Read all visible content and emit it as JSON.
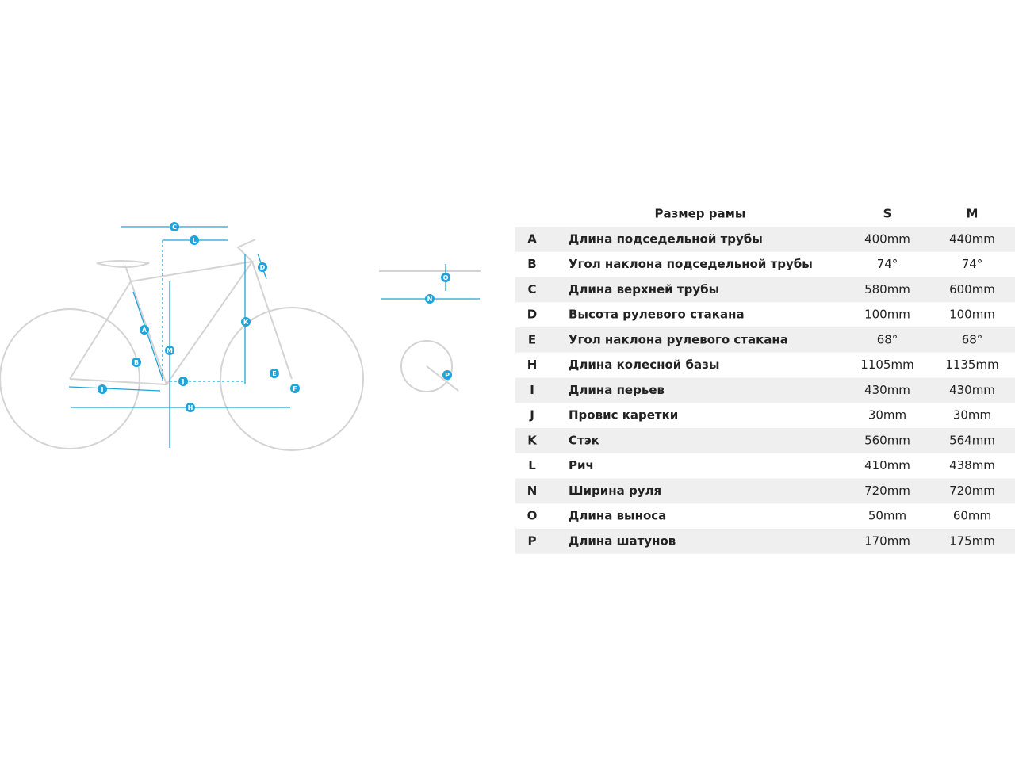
{
  "diagram": {
    "bike_labels": [
      "C",
      "L",
      "D",
      "A",
      "K",
      "M",
      "B",
      "J",
      "E",
      "F",
      "I",
      "H"
    ],
    "handlebar_labels": [
      "O",
      "N"
    ],
    "crank_labels": [
      "P"
    ]
  },
  "table": {
    "header": [
      "Размер рамы",
      "S",
      "M"
    ],
    "rows": [
      [
        "A",
        "Длина подседельной трубы",
        "400mm",
        "440mm"
      ],
      [
        "B",
        "Угол наклона подседельной трубы",
        "74°",
        "74°"
      ],
      [
        "C",
        "Длина верхней трубы",
        "580mm",
        "600mm"
      ],
      [
        "D",
        "Высота рулевого стакана",
        "100mm",
        "100mm"
      ],
      [
        "E",
        "Угол наклона рулевого стакана",
        "68°",
        "68°"
      ],
      [
        "H",
        "Длина колесной базы",
        "1105mm",
        "1135mm"
      ],
      [
        "I",
        "Длина перьев",
        "430mm",
        "430mm"
      ],
      [
        "J",
        "Провис каретки",
        "30mm",
        "30mm"
      ],
      [
        "K",
        "Стэк",
        "560mm",
        "564mm"
      ],
      [
        "L",
        "Рич",
        "410mm",
        "438mm"
      ],
      [
        "N",
        "Ширина руля",
        "720mm",
        "720mm"
      ],
      [
        "O",
        "Длина выноса",
        "50mm",
        "60mm"
      ],
      [
        "P",
        "Длина шатунов",
        "170mm",
        "175mm"
      ]
    ]
  }
}
